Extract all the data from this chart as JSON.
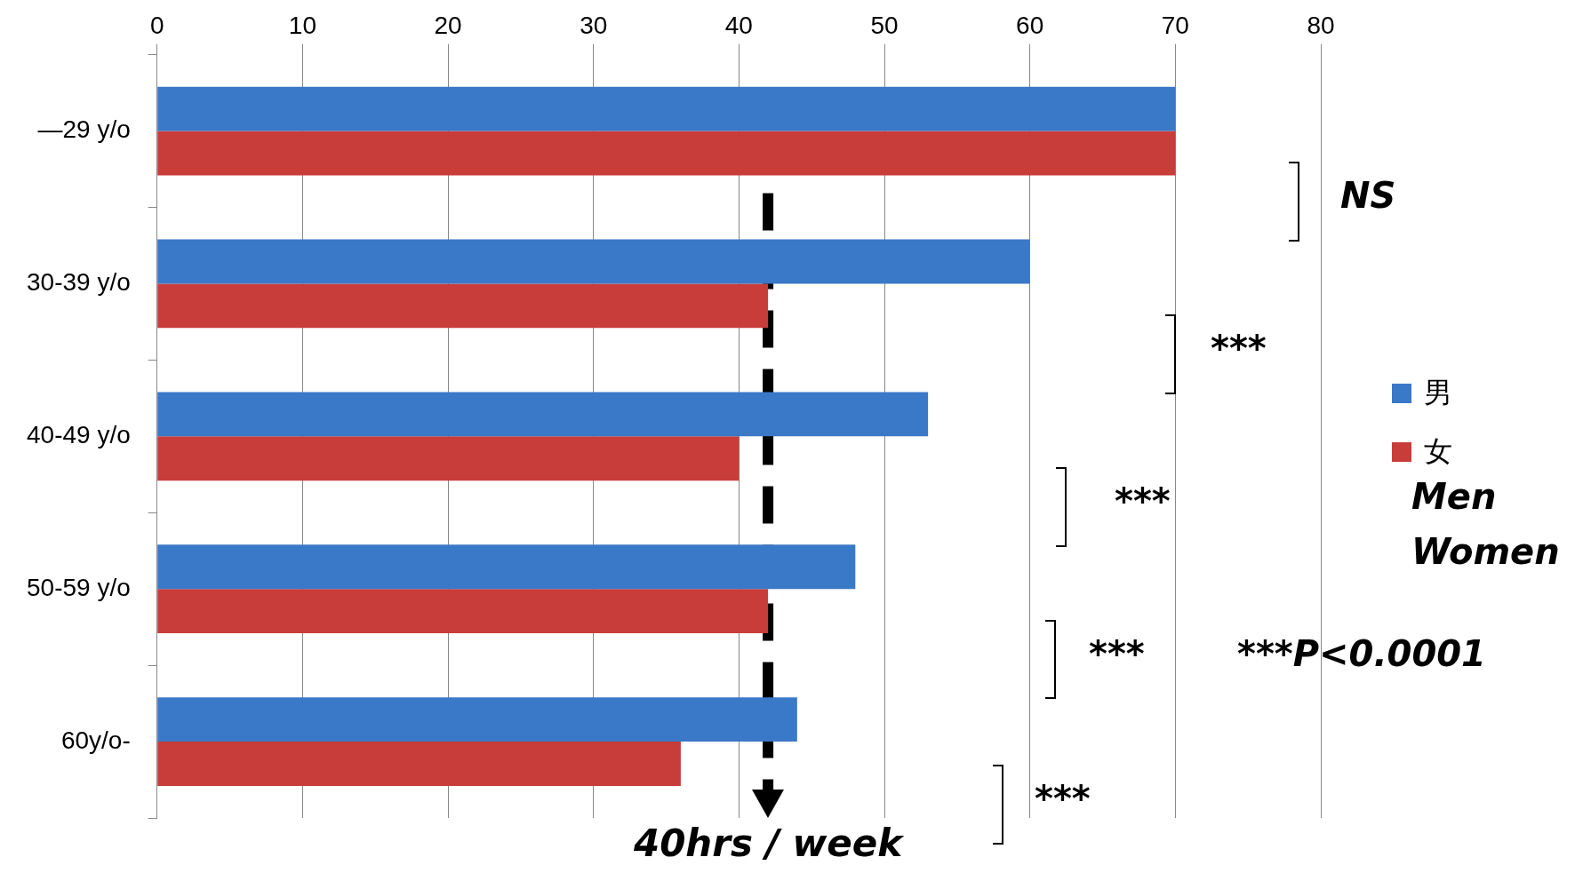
{
  "chart_data": {
    "type": "bar",
    "orientation": "horizontal",
    "categories": [
      "—29 y/o",
      "30-39 y/o",
      "40-49 y/o",
      "50-59 y/o",
      "60y/o-"
    ],
    "series": [
      {
        "name": "男",
        "color": "#3a78c8",
        "values": [
          70,
          60,
          53,
          48,
          44
        ]
      },
      {
        "name": "女",
        "color": "#c83c3a",
        "values": [
          70,
          42,
          40,
          42,
          36
        ]
      }
    ],
    "xlim": [
      0,
      80
    ],
    "xticks": [
      0,
      10,
      20,
      30,
      40,
      50,
      60,
      70,
      80
    ],
    "grid": "x",
    "legend": "right",
    "ref_lines": [
      {
        "axis": "x",
        "value": 42,
        "label": "40hrs / week",
        "line_style": "dashed",
        "color": "#000000"
      }
    ],
    "annotations": [
      "NS",
      "***",
      "***",
      "***",
      "***",
      "***P<0.0001",
      "Men",
      "Women"
    ]
  }
}
